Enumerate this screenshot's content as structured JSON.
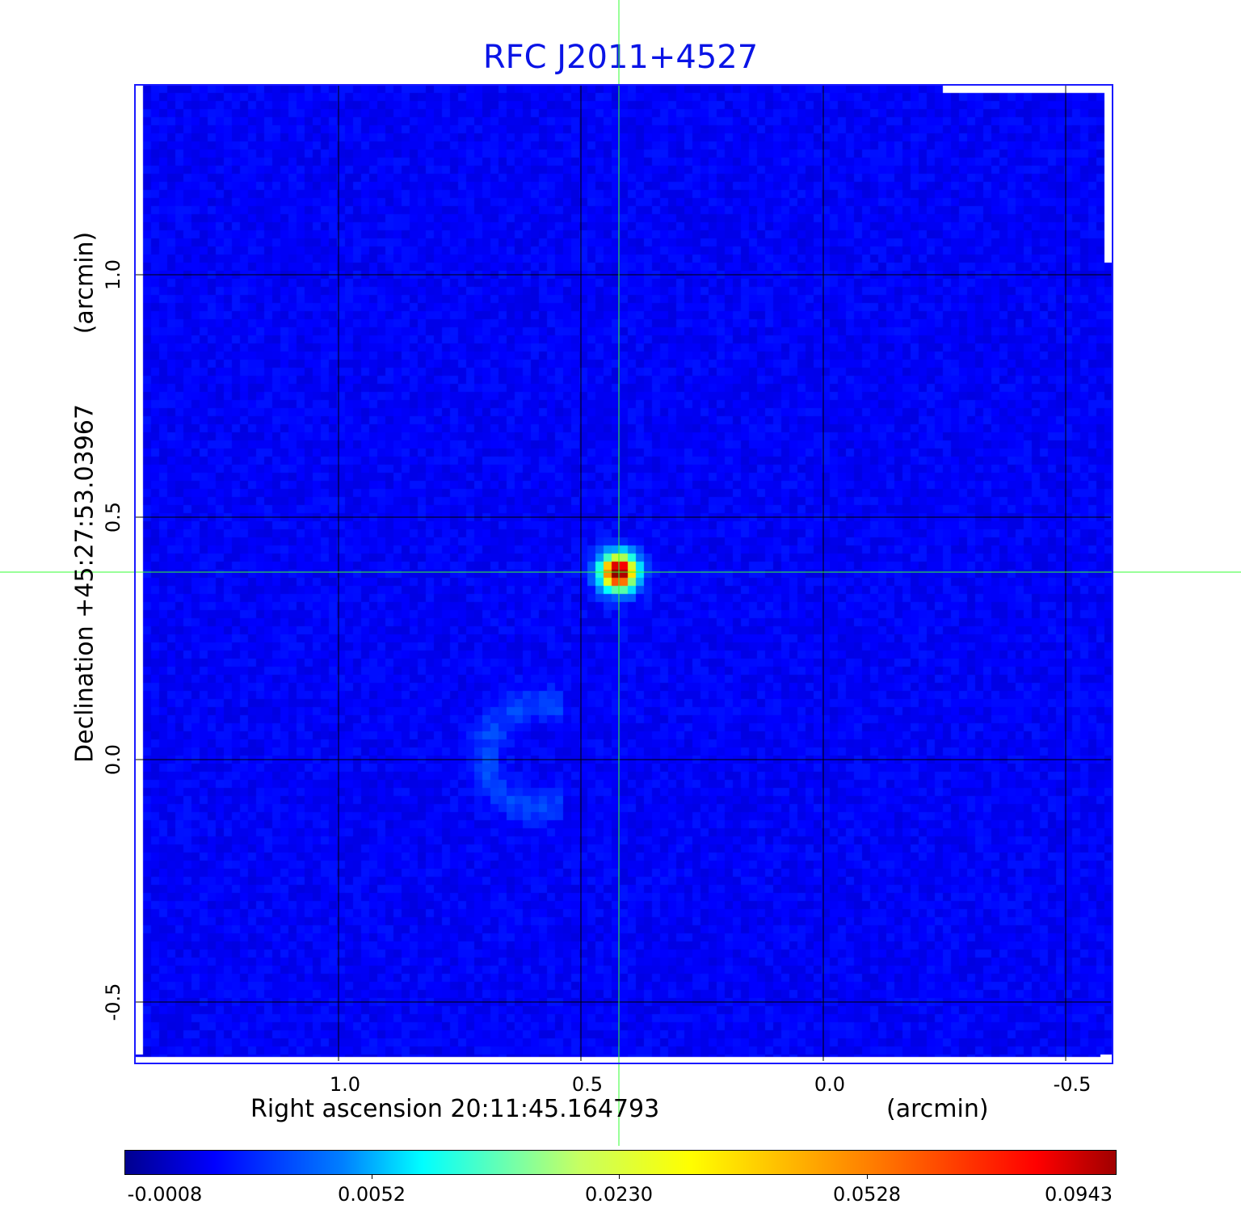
{
  "title": "RFC J2011+4527",
  "x_axis": {
    "label": "Right ascension  20:11:45.164793",
    "unit": "(arcmin)",
    "ticks": [
      "1.0",
      "0.5",
      "0.0",
      "-0.5"
    ]
  },
  "y_axis": {
    "label": "Declination  +45:27:53.03967",
    "unit": "(arcmin)",
    "ticks": [
      "1.0",
      "0.5",
      "0.0",
      "-0.5"
    ]
  },
  "colorbar": {
    "colormap": "jet",
    "ticks": [
      "-0.0008",
      "0.0052",
      "0.0230",
      "0.0528",
      "0.0943"
    ]
  },
  "colors": {
    "title": "#0a14e6",
    "frame": "#1a1aff",
    "crosshair": "#33ff33",
    "grid": "#000000",
    "background_field": "#1a3cf0"
  },
  "crosshair": {
    "visible": true
  },
  "grid": true
}
